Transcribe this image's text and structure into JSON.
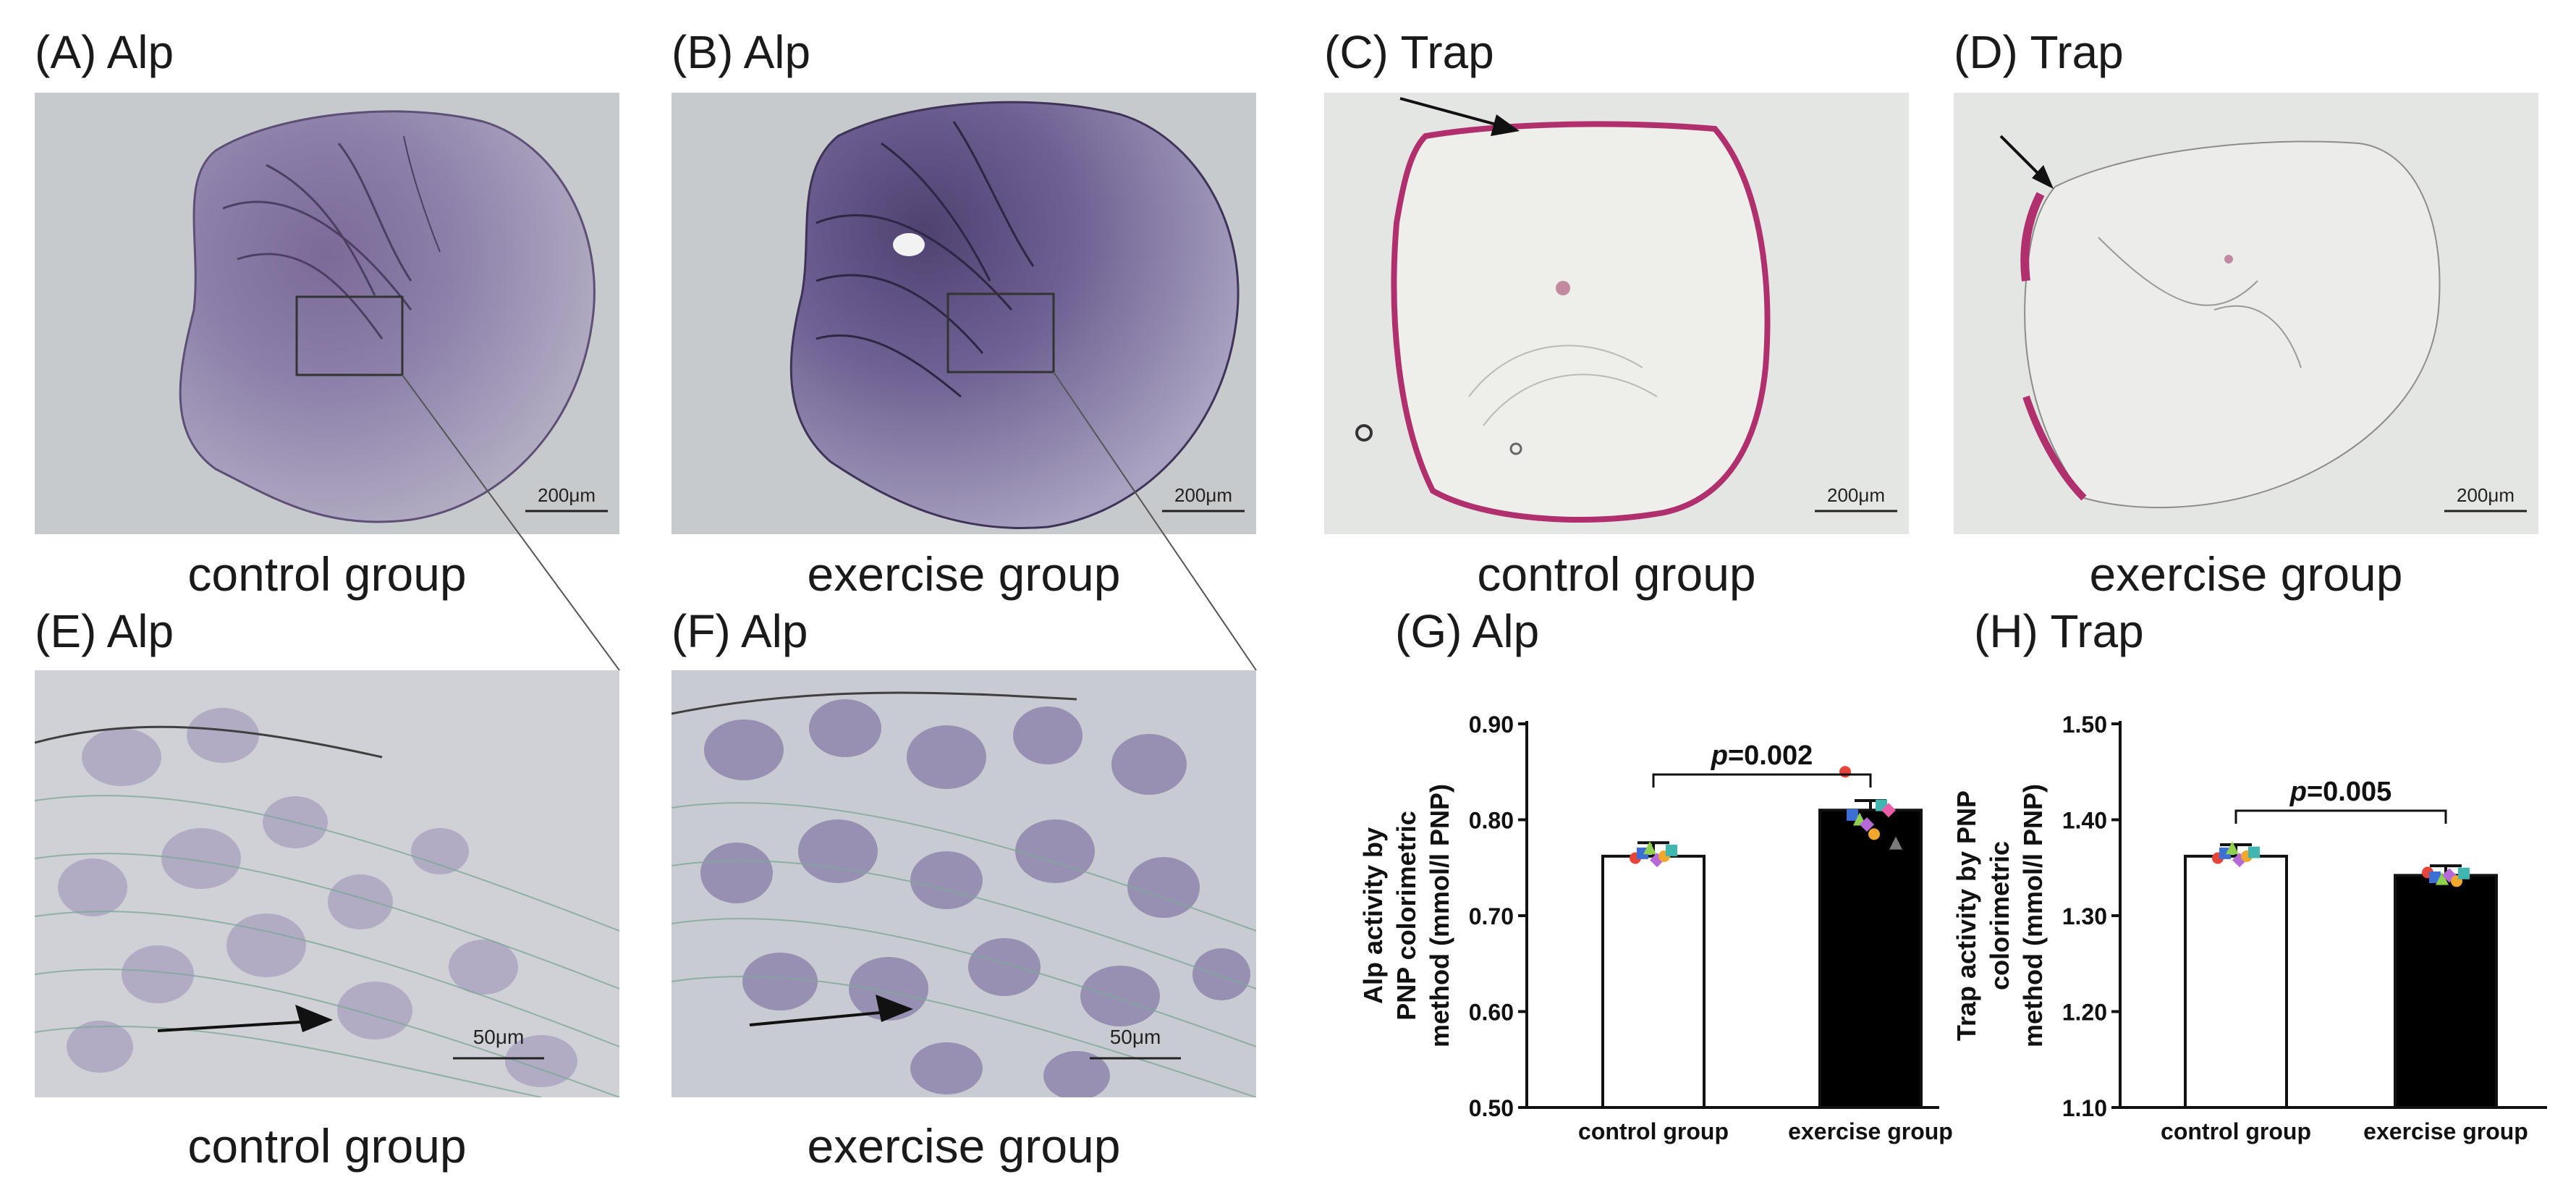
{
  "panels": {
    "A": {
      "label": "(A) Alp",
      "scale": "200μm"
    },
    "B": {
      "label": "(B) Alp",
      "scale": "200μm"
    },
    "C": {
      "label": "(C) Trap",
      "scale": "200μm"
    },
    "D": {
      "label": "(D) Trap",
      "scale": "200μm"
    },
    "E": {
      "label": "(E) Alp",
      "scale": "50μm"
    },
    "F": {
      "label": "(F) Alp",
      "scale": "50μm"
    },
    "G": {
      "label": "(G) Alp"
    },
    "H": {
      "label": "(H) Trap"
    }
  },
  "captions": {
    "a": "control group",
    "b": "exercise group",
    "c": "control group",
    "d": "exercise group",
    "e": "control group",
    "f": "exercise group"
  },
  "chart_data": [
    {
      "type": "bar",
      "panel": "G",
      "categories": [
        "control group",
        "exercise group"
      ],
      "values": [
        0.762,
        0.81
      ],
      "errors": [
        0.014,
        0.01
      ],
      "bar_colors": [
        "#ffffff",
        "#000000"
      ],
      "points": [
        [
          0.76,
          0.765,
          0.77,
          0.758,
          0.762,
          0.768
        ],
        [
          0.85,
          0.805,
          0.8,
          0.795,
          0.785,
          0.815,
          0.81,
          0.775
        ]
      ],
      "ylabel_lines": [
        "Alp activity by",
        "PNP colorimetric",
        "method (mmol/l PNP)"
      ],
      "ylim": [
        0.5,
        0.9
      ],
      "yticks": [
        "0.50",
        "0.60",
        "0.70",
        "0.80",
        "0.90"
      ],
      "annotation": {
        "p_symbol": "p",
        "p_value": "=0.002"
      }
    },
    {
      "type": "bar",
      "panel": "H",
      "categories": [
        "control group",
        "exercise group"
      ],
      "values": [
        1.362,
        1.342
      ],
      "errors": [
        0.012,
        0.01
      ],
      "bar_colors": [
        "#ffffff",
        "#000000"
      ],
      "points": [
        [
          1.36,
          1.365,
          1.37,
          1.358,
          1.362,
          1.366
        ],
        [
          1.345,
          1.34,
          1.338,
          1.342,
          1.336,
          1.344
        ]
      ],
      "ylabel_lines": [
        "Trap activity by PNP",
        "colorimetric",
        "method (mmol/l PNP)"
      ],
      "ylim": [
        1.1,
        1.5
      ],
      "yticks": [
        "1.10",
        "1.20",
        "1.30",
        "1.40",
        "1.50"
      ],
      "annotation": {
        "p_symbol": "p",
        "p_value": "=0.005"
      }
    }
  ],
  "colors": {
    "alp_stain": "#6d5a8f",
    "trap_stain": "#b0306e",
    "micro_bg": "#c9cdd0",
    "trap_bg": "#e6e8e5"
  }
}
